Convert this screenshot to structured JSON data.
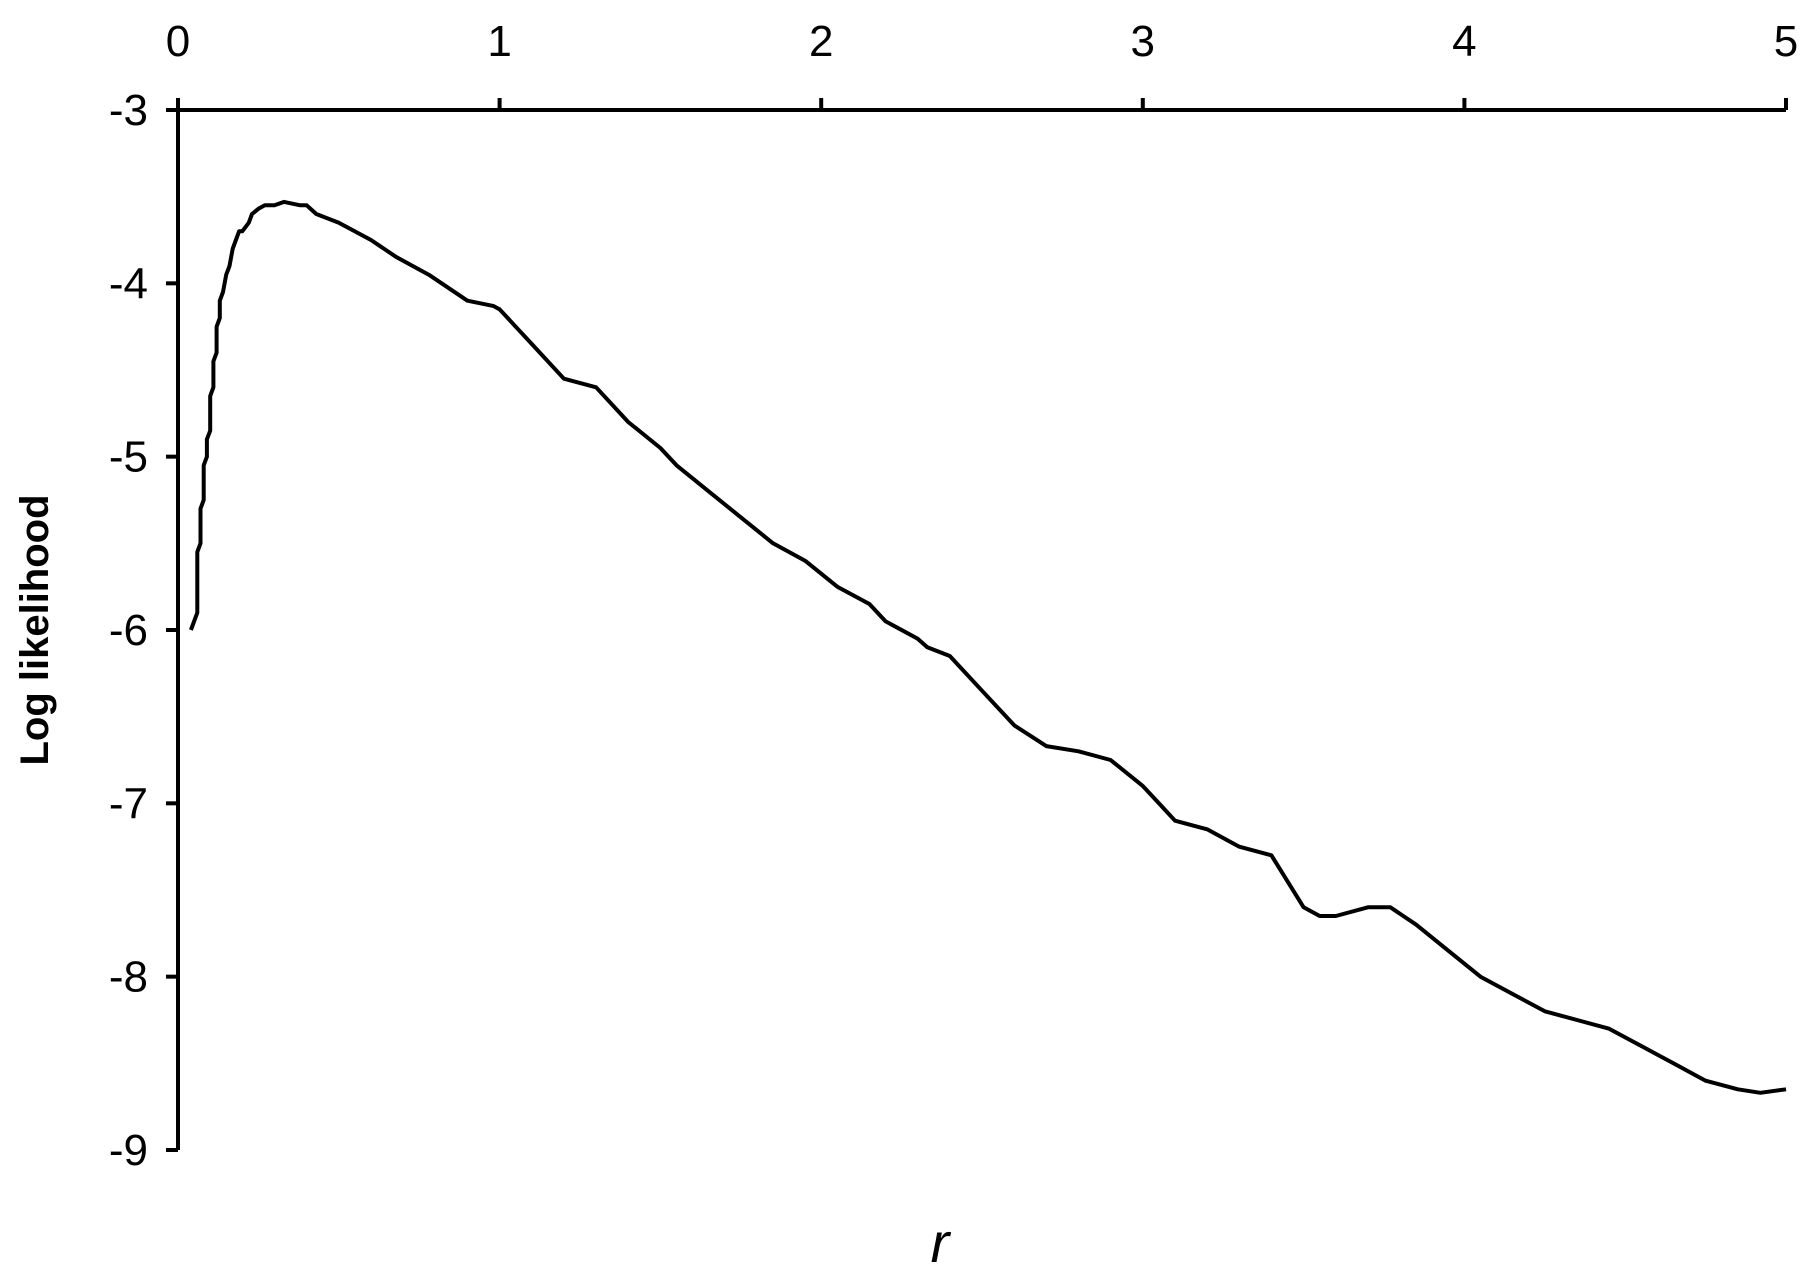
{
  "chart_data": {
    "type": "line",
    "xlabel": "r",
    "ylabel": "Log likelihood",
    "xlim": [
      0,
      5
    ],
    "ylim": [
      -9,
      -3
    ],
    "x_axis_position": "top",
    "xticks": [
      0,
      1,
      2,
      3,
      4,
      5
    ],
    "yticks": [
      -3,
      -4,
      -5,
      -6,
      -7,
      -8,
      -9
    ],
    "grid": false,
    "legend": "none",
    "series": [
      {
        "color": "#000000",
        "x": [
          0.04,
          0.06,
          0.06,
          0.07,
          0.07,
          0.08,
          0.08,
          0.09,
          0.09,
          0.1,
          0.1,
          0.11,
          0.11,
          0.12,
          0.12,
          0.13,
          0.13,
          0.14,
          0.15,
          0.16,
          0.17,
          0.18,
          0.19,
          0.2,
          0.22,
          0.23,
          0.25,
          0.27,
          0.3,
          0.33,
          0.38,
          0.4,
          0.43,
          0.5,
          0.6,
          0.68,
          0.78,
          0.9,
          0.98,
          1.0,
          1.05,
          1.1,
          1.2,
          1.3,
          1.4,
          1.5,
          1.55,
          1.65,
          1.75,
          1.85,
          1.95,
          2.05,
          2.15,
          2.2,
          2.3,
          2.33,
          2.4,
          2.5,
          2.6,
          2.7,
          2.8,
          2.9,
          3.0,
          3.05,
          3.1,
          3.2,
          3.3,
          3.4,
          3.45,
          3.5,
          3.55,
          3.6,
          3.7,
          3.77,
          3.85,
          3.95,
          4.05,
          4.15,
          4.25,
          4.35,
          4.45,
          4.55,
          4.65,
          4.75,
          4.85,
          4.92,
          5.0
        ],
        "y": [
          -6.0,
          -5.9,
          -5.55,
          -5.5,
          -5.3,
          -5.25,
          -5.05,
          -5.0,
          -4.9,
          -4.85,
          -4.65,
          -4.6,
          -4.45,
          -4.4,
          -4.25,
          -4.2,
          -4.1,
          -4.05,
          -3.95,
          -3.9,
          -3.8,
          -3.75,
          -3.7,
          -3.7,
          -3.65,
          -3.6,
          -3.57,
          -3.55,
          -3.55,
          -3.53,
          -3.55,
          -3.55,
          -3.6,
          -3.65,
          -3.75,
          -3.85,
          -3.95,
          -4.1,
          -4.13,
          -4.15,
          -4.25,
          -4.35,
          -4.55,
          -4.6,
          -4.8,
          -4.95,
          -5.05,
          -5.2,
          -5.35,
          -5.5,
          -5.6,
          -5.75,
          -5.85,
          -5.95,
          -6.05,
          -6.1,
          -6.15,
          -6.35,
          -6.55,
          -6.67,
          -6.7,
          -6.75,
          -6.9,
          -7.0,
          -7.1,
          -7.15,
          -7.25,
          -7.3,
          -7.45,
          -7.6,
          -7.65,
          -7.65,
          -7.6,
          -7.6,
          -7.7,
          -7.85,
          -8.0,
          -8.1,
          -8.2,
          -8.25,
          -8.3,
          -8.4,
          -8.5,
          -8.6,
          -8.65,
          -8.67,
          -8.65
        ]
      }
    ]
  }
}
